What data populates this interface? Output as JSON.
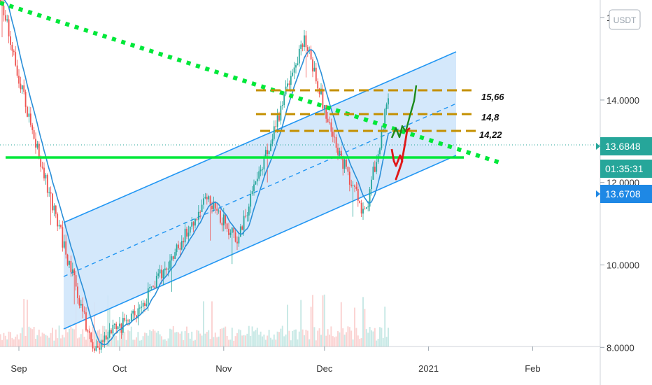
{
  "currency": "USDT",
  "chart_data": {
    "type": "candlestick",
    "y_ticks": [
      {
        "value": 8,
        "label": "8.0000"
      },
      {
        "value": 10,
        "label": "10.0000"
      },
      {
        "value": 12,
        "label": "12.0000"
      },
      {
        "value": 14,
        "label": "14.0000"
      },
      {
        "value": 16,
        "label": "16.0000"
      }
    ],
    "x_ticks": [
      {
        "date": "2020-09-01",
        "label": "Sep"
      },
      {
        "date": "2020-10-01",
        "label": "Oct"
      },
      {
        "date": "2020-11-01",
        "label": "Nov"
      },
      {
        "date": "2020-12-01",
        "label": "Dec"
      },
      {
        "date": "2021-01-01",
        "label": "2021"
      },
      {
        "date": "2021-02-01",
        "label": "Feb"
      }
    ],
    "price_labels": {
      "last_price": "13.6848",
      "countdown": "01:35:31",
      "other_price": "13.6708"
    },
    "level_labels": [
      {
        "value": 15.66,
        "label": "15,66"
      },
      {
        "value": 14.8,
        "label": "14,8"
      },
      {
        "value": 14.22,
        "label": "14,22"
      }
    ],
    "colors": {
      "up": "#26a69a",
      "down": "#ef5350",
      "channel": "#2196f3",
      "channel_fill": "#cfe5fb",
      "support": "#00e83a",
      "trendline": "#00e83a",
      "levels": "#c49000",
      "last_price_badge": "#26a69a",
      "other_badge": "#1e88e5",
      "bull_path": "#1b8a1b",
      "bear_path": "#e01818"
    },
    "support_level": 13.1,
    "key_points": [
      {
        "date": "2020-08-25",
        "price": 17.0
      },
      {
        "date": "2020-09-05",
        "price": 13.2
      },
      {
        "date": "2020-09-23",
        "price": 8.0
      },
      {
        "date": "2020-10-06",
        "price": 8.8
      },
      {
        "date": "2020-10-27",
        "price": 11.6
      },
      {
        "date": "2020-11-05",
        "price": 10.6
      },
      {
        "date": "2020-11-25",
        "price": 15.5
      },
      {
        "date": "2020-12-04",
        "price": 13.0
      },
      {
        "date": "2020-12-13",
        "price": 11.2
      },
      {
        "date": "2020-12-20",
        "price": 14.0
      }
    ]
  }
}
